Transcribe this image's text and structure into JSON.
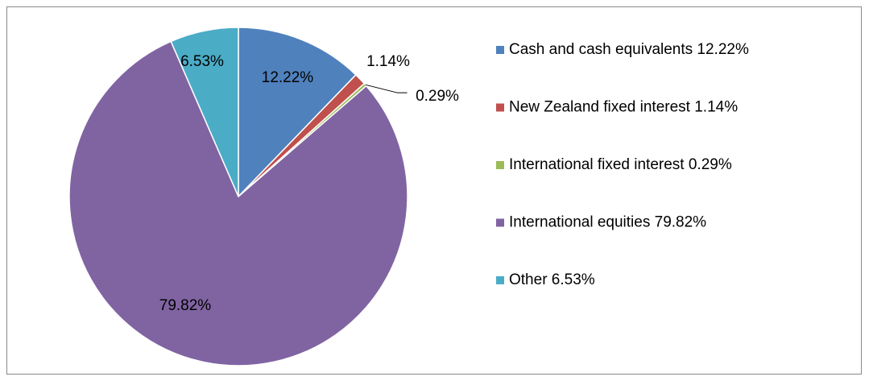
{
  "chart_data": {
    "type": "pie",
    "categories": [
      "Cash and cash equivalents 12.22%",
      "New Zealand fixed interest 1.14%",
      "International fixed interest 0.29%",
      "International equities 79.82%",
      "Other 6.53%"
    ],
    "values": [
      12.22,
      1.14,
      0.29,
      79.82,
      6.53
    ],
    "value_labels": [
      "12.22%",
      "1.14%",
      "0.29%",
      "79.82%",
      "6.53%"
    ],
    "colors": [
      "#4f81bd",
      "#c0504d",
      "#9bbb59",
      "#8064a2",
      "#4bacc6"
    ],
    "legend": "right"
  }
}
